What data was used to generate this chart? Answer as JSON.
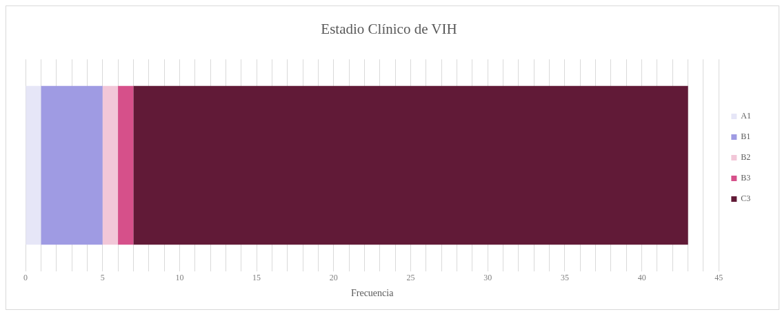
{
  "chart_data": {
    "type": "bar",
    "orientation": "horizontal",
    "stacked": true,
    "title": "Estadio Clínico de VIH",
    "xlabel": "Frecuencia",
    "categories": [
      null
    ],
    "series": [
      {
        "name": "A1",
        "color": "#e6e6f7",
        "values": [
          1
        ]
      },
      {
        "name": "B1",
        "color": "#9f9be3",
        "values": [
          4
        ]
      },
      {
        "name": "B2",
        "color": "#f2c7d8",
        "values": [
          1
        ]
      },
      {
        "name": "B3",
        "color": "#d6508a",
        "values": [
          1
        ]
      },
      {
        "name": "C3",
        "color": "#611a37",
        "values": [
          36
        ]
      }
    ],
    "xlim": [
      0,
      45
    ],
    "xticks": [
      0,
      {
        "value": 1,
        "label": null
      },
      {
        "value": 2,
        "label": null
      },
      {
        "value": 3,
        "label": null
      },
      {
        "value": 4,
        "label": null
      },
      5,
      {
        "value": 6,
        "label": null
      },
      {
        "value": 7,
        "label": null
      },
      {
        "value": 8,
        "label": null
      },
      {
        "value": 9,
        "label": null
      },
      10,
      {
        "value": 11,
        "label": null
      },
      {
        "value": 12,
        "label": null
      },
      {
        "value": 13,
        "label": null
      },
      {
        "value": 14,
        "label": null
      },
      15,
      {
        "value": 16,
        "label": null
      },
      {
        "value": 17,
        "label": null
      },
      {
        "value": 18,
        "label": null
      },
      {
        "value": 19,
        "label": null
      },
      20,
      {
        "value": 21,
        "label": null
      },
      {
        "value": 22,
        "label": null
      },
      {
        "value": 23,
        "label": null
      },
      {
        "value": 24,
        "label": null
      },
      25,
      {
        "value": 26,
        "label": null
      },
      {
        "value": 27,
        "label": null
      },
      {
        "value": 28,
        "label": null
      },
      {
        "value": 29,
        "label": null
      },
      30,
      {
        "value": 31,
        "label": null
      },
      {
        "value": 32,
        "label": null
      },
      {
        "value": 33,
        "label": null
      },
      {
        "value": 34,
        "label": null
      },
      35,
      {
        "value": 36,
        "label": null
      },
      {
        "value": 37,
        "label": null
      },
      {
        "value": 38,
        "label": null
      },
      {
        "value": 39,
        "label": null
      },
      40,
      {
        "value": 41,
        "label": null
      },
      {
        "value": 42,
        "label": null
      },
      {
        "value": 43,
        "label": null
      },
      {
        "value": 44,
        "label": null
      },
      45
    ],
    "grid": "x",
    "legend": "right",
    "tick_labels": "x"
  }
}
